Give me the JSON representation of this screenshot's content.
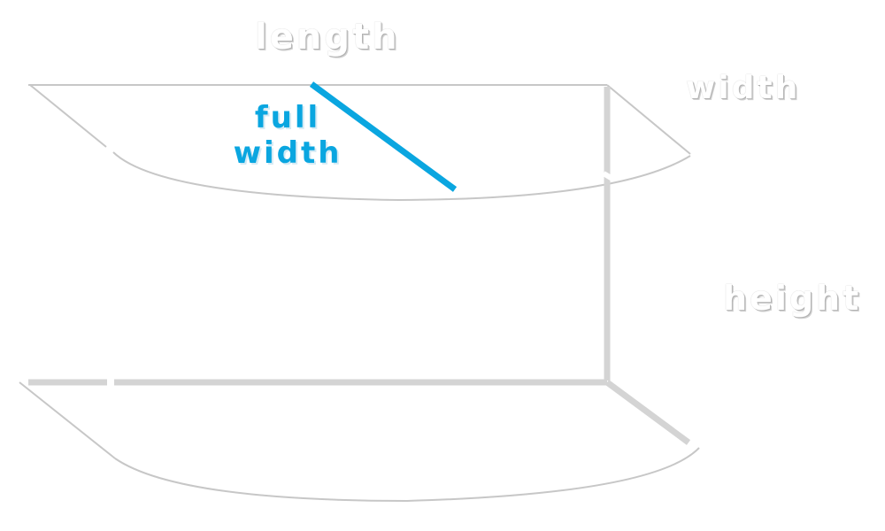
{
  "labels": {
    "length": "length",
    "width": "width",
    "height": "height",
    "full_width_line1": "full",
    "full_width_line2": "width"
  },
  "colors": {
    "outline": "#c7c7c7",
    "post": "#d4d4d4",
    "accent": "#0aa6e0",
    "label_shadow": "#c4c4c4"
  }
}
